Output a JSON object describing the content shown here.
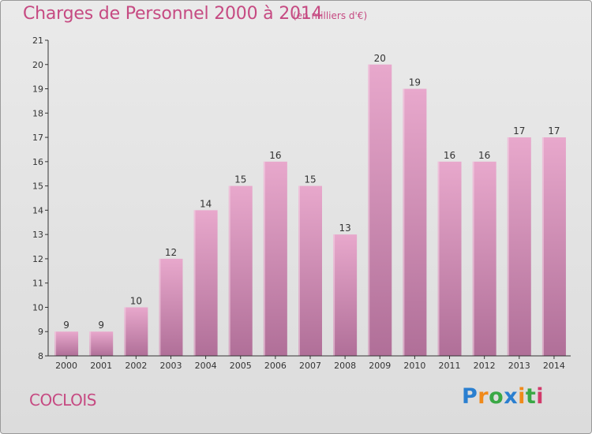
{
  "header": {
    "title": "Charges de Personnel 2000 à 2014",
    "subtitle": "(en milliers d'€)"
  },
  "footer": {
    "commune": "COCLOIS",
    "logo": [
      "P",
      "r",
      "o",
      "x",
      "i",
      "t",
      "i"
    ],
    "logo_colors": [
      "#2a7fd0",
      "#f08a1a",
      "#3aa845",
      "#2a7fd0",
      "#f08a1a",
      "#3aa845",
      "#d23a6b"
    ]
  },
  "colors": {
    "bar_top": "#e8a8cc",
    "bar_bottom": "#b06f98",
    "accent": "#c64a82"
  },
  "chart_data": {
    "type": "bar",
    "categories": [
      "2000",
      "2001",
      "2002",
      "2003",
      "2004",
      "2005",
      "2006",
      "2007",
      "2008",
      "2009",
      "2010",
      "2011",
      "2012",
      "2013",
      "2014"
    ],
    "values": [
      9,
      9,
      10,
      12,
      14,
      15,
      16,
      15,
      13,
      20,
      19,
      16,
      16,
      17,
      17
    ],
    "ylim": [
      8,
      21
    ],
    "yticks": [
      8,
      9,
      10,
      11,
      12,
      13,
      14,
      15,
      16,
      17,
      18,
      19,
      20,
      21
    ],
    "grid": false
  }
}
